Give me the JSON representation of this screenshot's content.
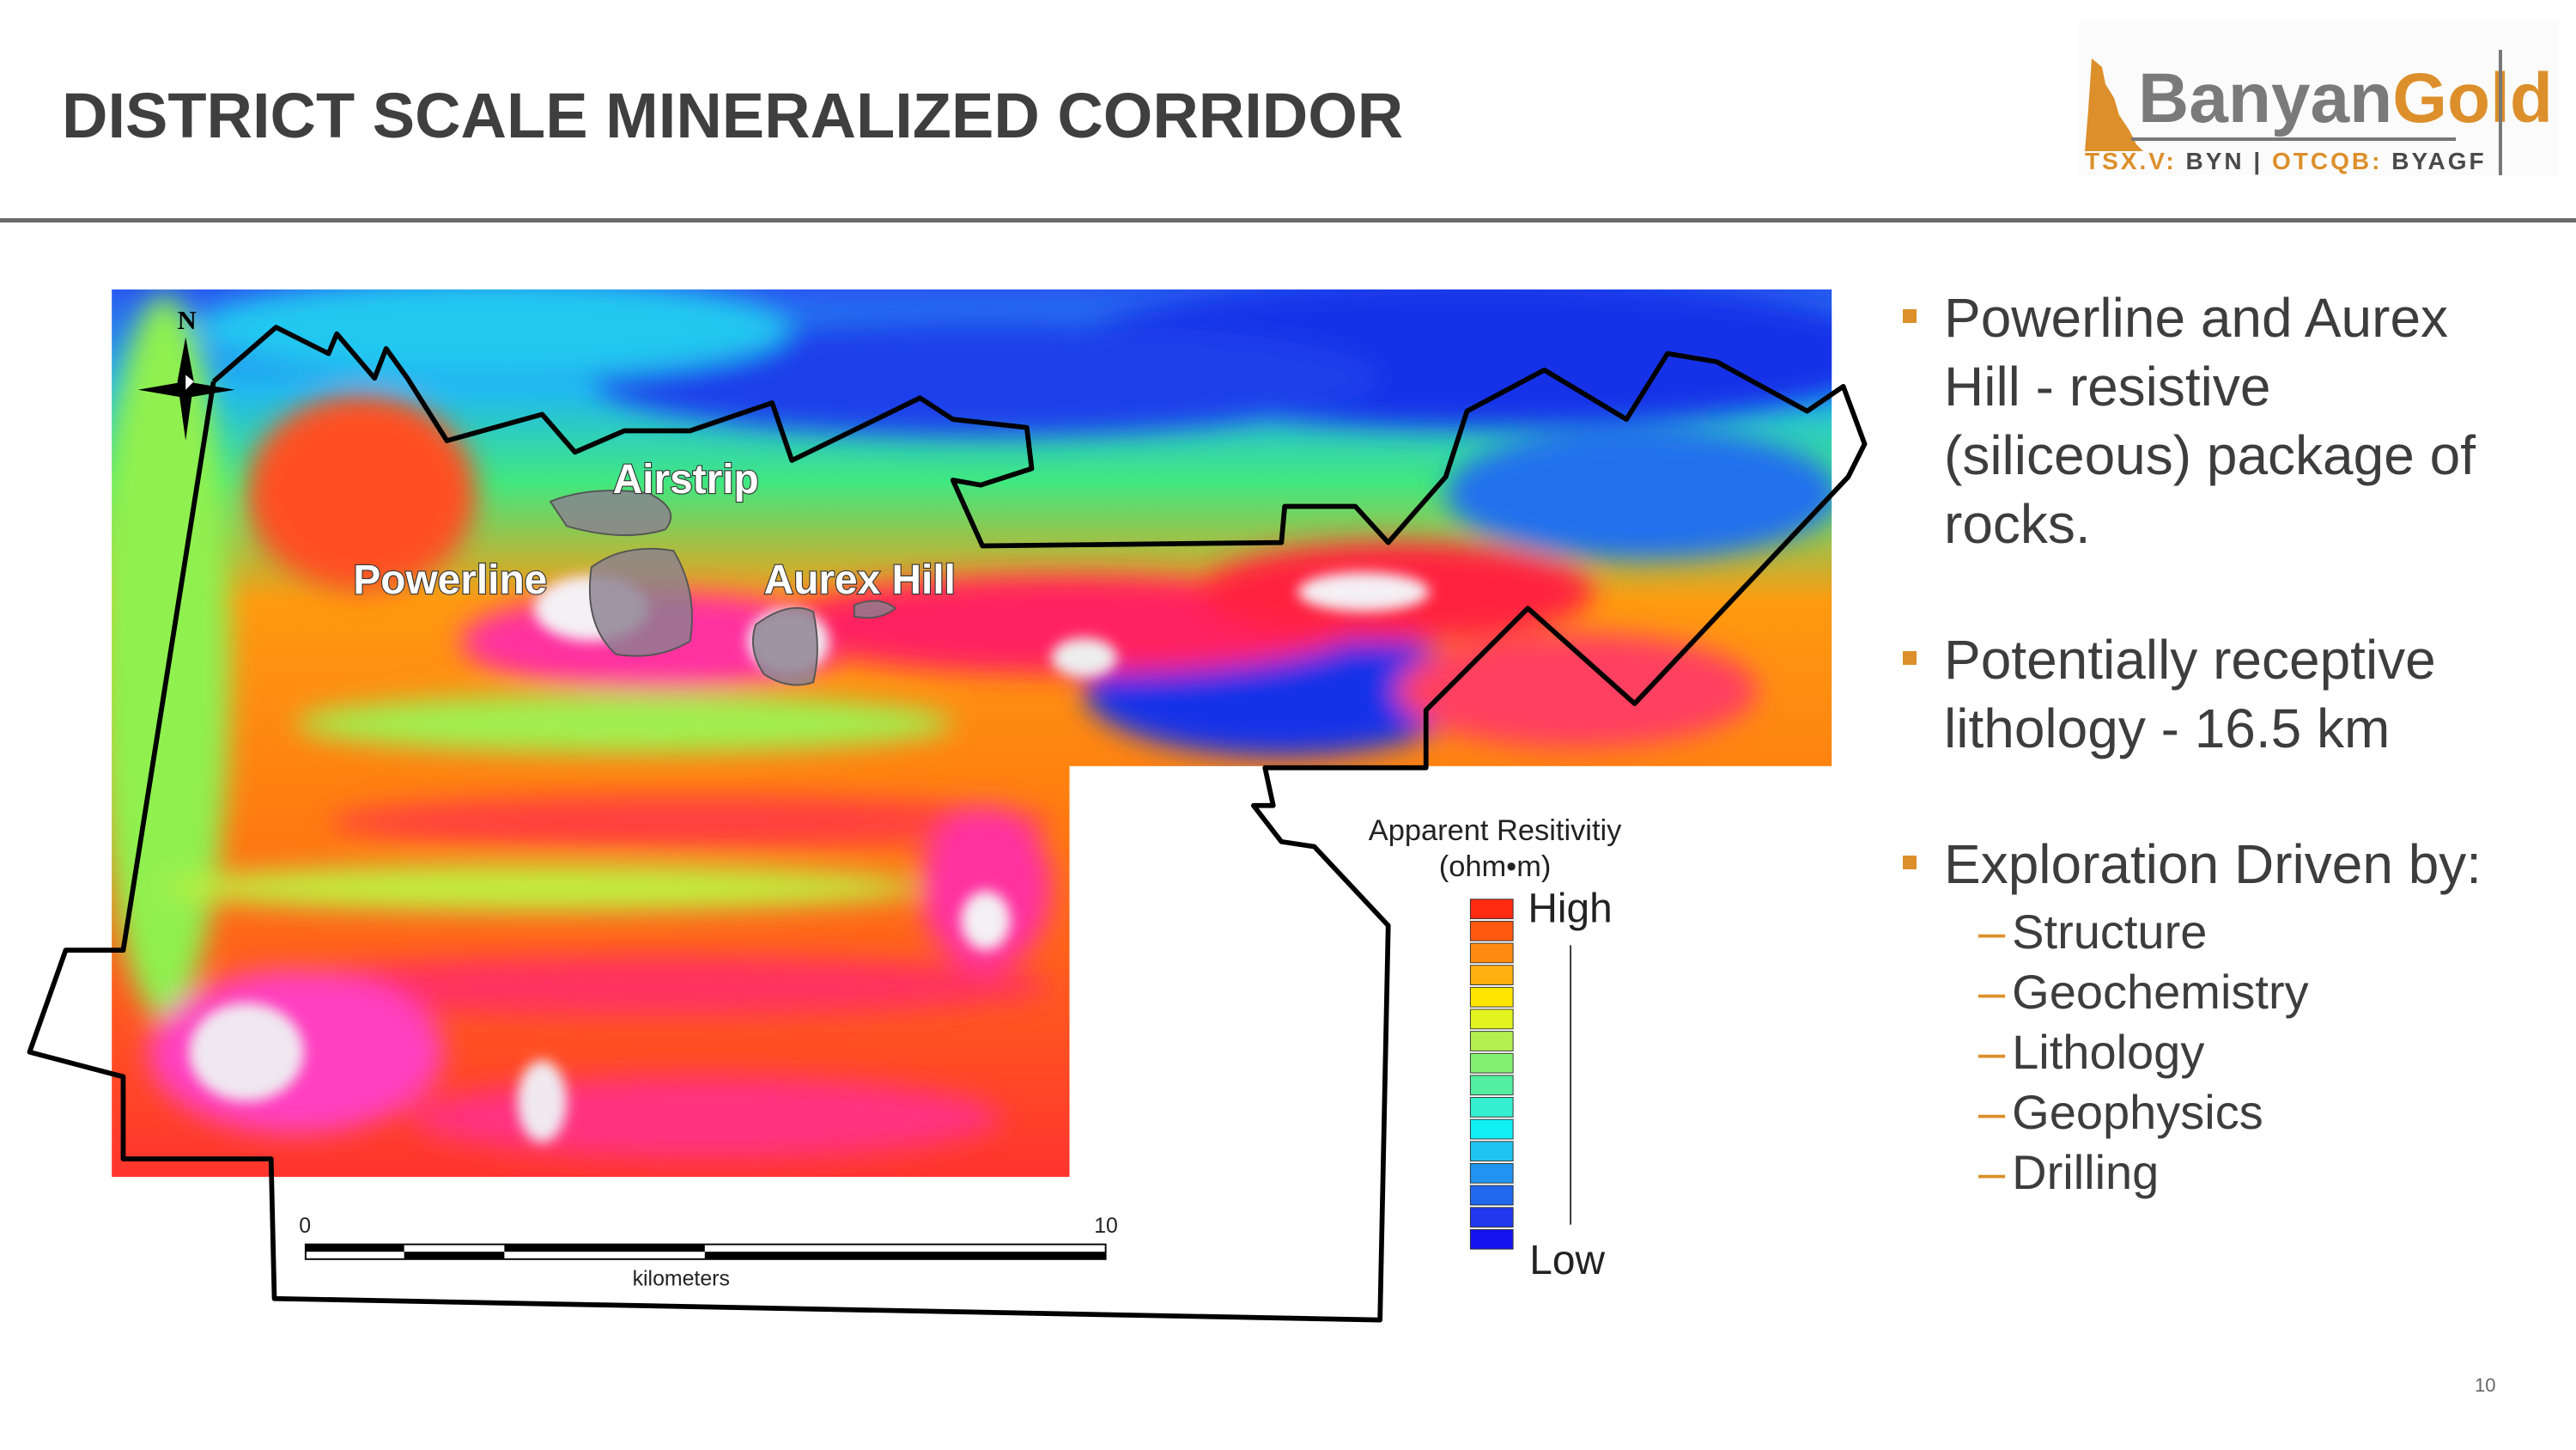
{
  "header": {
    "title": "DISTRICT SCALE MINERALIZED CORRIDOR"
  },
  "logo": {
    "brand_part1": "Banyan",
    "brand_part2": "Gold",
    "ticker_exchange1": "TSX.V:",
    "ticker_symbol1": "BYN",
    "separator": "|",
    "ticker_exchange2": "OTCQB:",
    "ticker_symbol2": "BYAGF",
    "accent_color": "#dc8f2a"
  },
  "map": {
    "north_label": "N",
    "labels": {
      "airstrip": "Airstrip",
      "powerline": "Powerline",
      "aurex_hill": "Aurex Hill"
    },
    "scale_bar": {
      "start": "0",
      "end": "10",
      "unit": "kilometers"
    },
    "legend": {
      "title": "Apparent Resitivitiy",
      "unit": "(ohm•m)",
      "high": "High",
      "low": "Low",
      "colors": [
        "#ff2a10",
        "#ff5810",
        "#ff8a10",
        "#ffb010",
        "#ffe600",
        "#e2f420",
        "#b4f050",
        "#84f070",
        "#54eea0",
        "#34f0d0",
        "#10f0f4",
        "#20c4f0",
        "#2094f0",
        "#2068ee",
        "#2038ee",
        "#1414f0"
      ]
    }
  },
  "bullets": [
    {
      "lines": [
        "Powerline and Aurex",
        "Hill - resistive",
        "(siliceous) package of",
        "rocks."
      ]
    },
    {
      "lines": [
        "Potentially receptive",
        "lithology - 16.5 km"
      ]
    },
    {
      "lines": [
        "Exploration Driven by:"
      ],
      "subitems": [
        "Structure",
        "Geochemistry",
        "Lithology",
        "Geophysics",
        "Drilling"
      ]
    }
  ],
  "page_number": "10"
}
